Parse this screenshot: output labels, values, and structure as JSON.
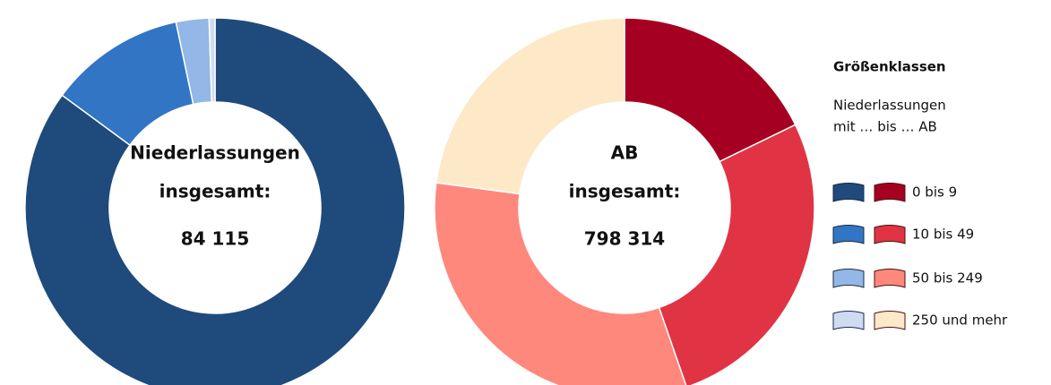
{
  "chart_data": [
    {
      "type": "donut",
      "center_text": [
        "Niederlassungen",
        "insgesamt:"
      ],
      "total": "84 115",
      "categories": [
        "0 bis 9",
        "10 bis 49",
        "50 bis 249",
        "250 und mehr"
      ],
      "values": [
        85.1,
        11.6,
        2.8,
        0.5
      ],
      "colors": [
        "#1f4a7c",
        "#3275c4",
        "#93b7e6",
        "#cddcf2"
      ]
    },
    {
      "type": "donut",
      "center_text": [
        "AB",
        "insgesamt:"
      ],
      "total": "798 314",
      "values": [
        17.8,
        26.9,
        32.4,
        22.9
      ],
      "colors": [
        "#a50021",
        "#e03444",
        "#ff887c",
        "#fde9c8"
      ]
    }
  ],
  "legend": {
    "title": "Größenklassen",
    "note": [
      "Niederlassungen",
      "mit … bis … AB"
    ]
  }
}
